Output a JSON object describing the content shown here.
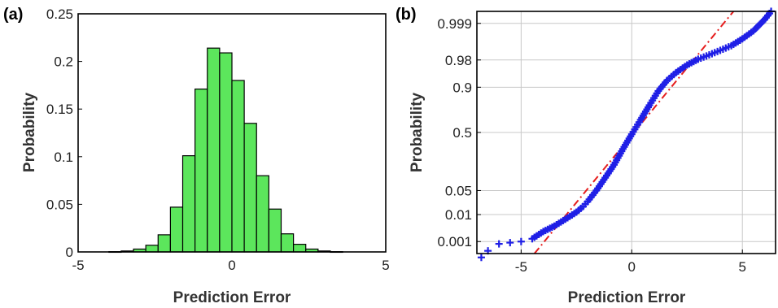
{
  "chart_data": [
    {
      "type": "bar",
      "panel_label": "(a)",
      "xlabel": "Prediction Error",
      "ylabel": "Probability",
      "xlim": [
        -5,
        5
      ],
      "ylim": [
        0,
        0.25
      ],
      "xticks": [
        "-5",
        "0",
        "5"
      ],
      "yticks": [
        "0",
        "0.05",
        "0.1",
        "0.15",
        "0.2",
        "0.25"
      ],
      "grid": false,
      "bar_color": "#5ce65c",
      "bin_width": 0.4,
      "bin_centers": [
        -4.2,
        -3.8,
        -3.4,
        -3.0,
        -2.6,
        -2.2,
        -1.8,
        -1.4,
        -1.0,
        -0.6,
        -0.2,
        0.2,
        0.6,
        1.0,
        1.4,
        1.8,
        2.2,
        2.6,
        3.0,
        3.4,
        3.8,
        4.2
      ],
      "values": [
        0.0,
        0.0003,
        0.001,
        0.003,
        0.007,
        0.018,
        0.047,
        0.101,
        0.171,
        0.214,
        0.209,
        0.18,
        0.135,
        0.08,
        0.045,
        0.019,
        0.008,
        0.003,
        0.001,
        0.0003,
        0.0,
        0.0
      ]
    },
    {
      "type": "scatter",
      "panel_label": "(b)",
      "xlabel": "Prediction Error",
      "ylabel": "Probability",
      "xlim": [
        -7,
        6.5
      ],
      "xticks": [
        "-5",
        "0",
        "5"
      ],
      "yticks": [
        "0.001",
        "0.01",
        "0.05",
        "0.5",
        "0.9",
        "0.98",
        "0.999"
      ],
      "y_scale": "normal-probability",
      "grid": true,
      "marker": "+",
      "marker_color": "#1f1fe6",
      "reference_line_color": "#e61e1e",
      "reference_line": {
        "x": [
          -4.4,
          4.6
        ],
        "p": [
          0.0003,
          0.9997
        ]
      },
      "points": {
        "x": [
          -6.8,
          -6.5,
          -6.0,
          -5.5,
          -5.0,
          -4.5,
          -4.0,
          -3.5,
          -3.0,
          -2.5,
          -2.2,
          -2.0,
          -1.6,
          -1.2,
          -0.8,
          -0.4,
          0.0,
          0.4,
          0.8,
          1.2,
          1.6,
          2.0,
          2.5,
          3.0,
          3.5,
          4.0,
          4.5,
          5.0,
          5.5,
          6.0,
          6.3
        ],
        "p": [
          0.0002,
          0.0004,
          0.0008,
          0.0009,
          0.001,
          0.0013,
          0.0025,
          0.004,
          0.007,
          0.012,
          0.018,
          0.025,
          0.05,
          0.1,
          0.18,
          0.32,
          0.48,
          0.64,
          0.78,
          0.88,
          0.93,
          0.955,
          0.972,
          0.981,
          0.986,
          0.99,
          0.993,
          0.996,
          0.998,
          0.9993,
          0.9997
        ]
      }
    }
  ]
}
